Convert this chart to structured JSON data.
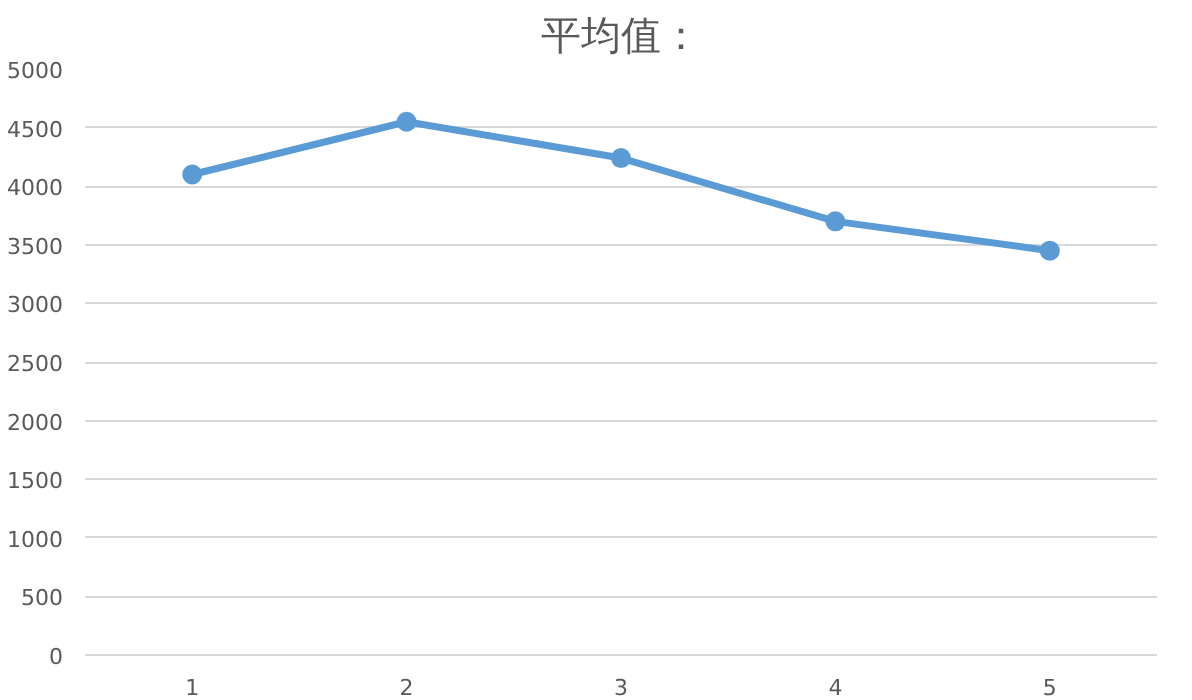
{
  "chart_data": {
    "type": "line",
    "title": "平均值：",
    "categories": [
      "1",
      "2",
      "3",
      "4",
      "5"
    ],
    "series": [
      {
        "color": "#5b9bd5",
        "values": [
          4100,
          4550,
          4240,
          3700,
          3450
        ]
      }
    ],
    "ylim": [
      0,
      5000
    ],
    "yticks": [
      0,
      500,
      1000,
      1500,
      2000,
      2500,
      3000,
      3500,
      4000,
      4500,
      5000
    ],
    "grid": "y",
    "marker": "circle",
    "line_style": "solid"
  }
}
